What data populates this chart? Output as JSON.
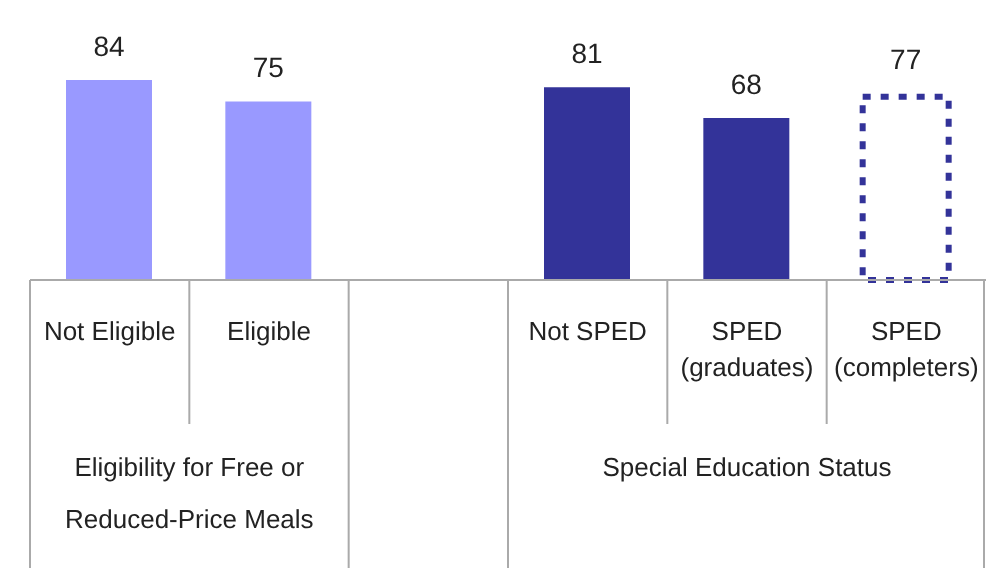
{
  "chart_data": {
    "type": "bar",
    "stacked": true,
    "data_labels": true,
    "categories": [
      "Not Eligible",
      "Eligible",
      null,
      "Not SPED",
      "SPED (graduates)",
      "SPED (completers)"
    ],
    "series": [
      {
        "color": "#333399",
        "colors": [
          "#9999ff",
          "#9999ff",
          null,
          "#333399",
          "#333399",
          null
        ],
        "values": [
          84,
          75,
          null,
          81,
          68,
          null
        ]
      },
      {
        "color": "#333399",
        "line_style": "dotted",
        "values": [
          null,
          null,
          null,
          null,
          null,
          77
        ]
      }
    ],
    "annotations": [
      "Eligibility for Free or Reduced-Price Meals",
      "Special Education Status"
    ]
  }
}
